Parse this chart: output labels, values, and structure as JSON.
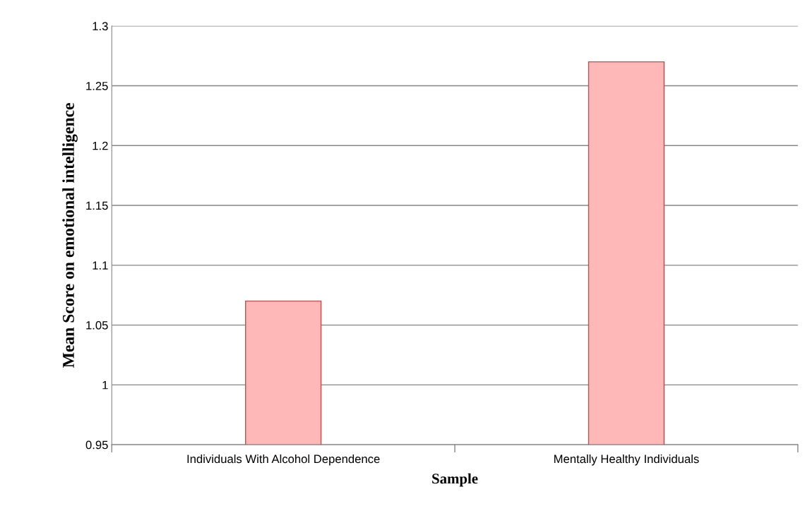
{
  "chart_data": {
    "type": "bar",
    "xlabel": "Sample",
    "ylabel": "Mean Score on emotional intelligence",
    "categories": [
      "Individuals With Alcohol Dependence",
      "Mentally Healthy Individuals"
    ],
    "values": [
      1.07,
      1.27
    ],
    "color": "#ffb8b8",
    "ylim": [
      0.95,
      1.3
    ],
    "yticks": [
      0.95,
      1,
      1.05,
      1.1,
      1.15,
      1.2,
      1.25,
      1.3
    ],
    "grid": "y"
  }
}
